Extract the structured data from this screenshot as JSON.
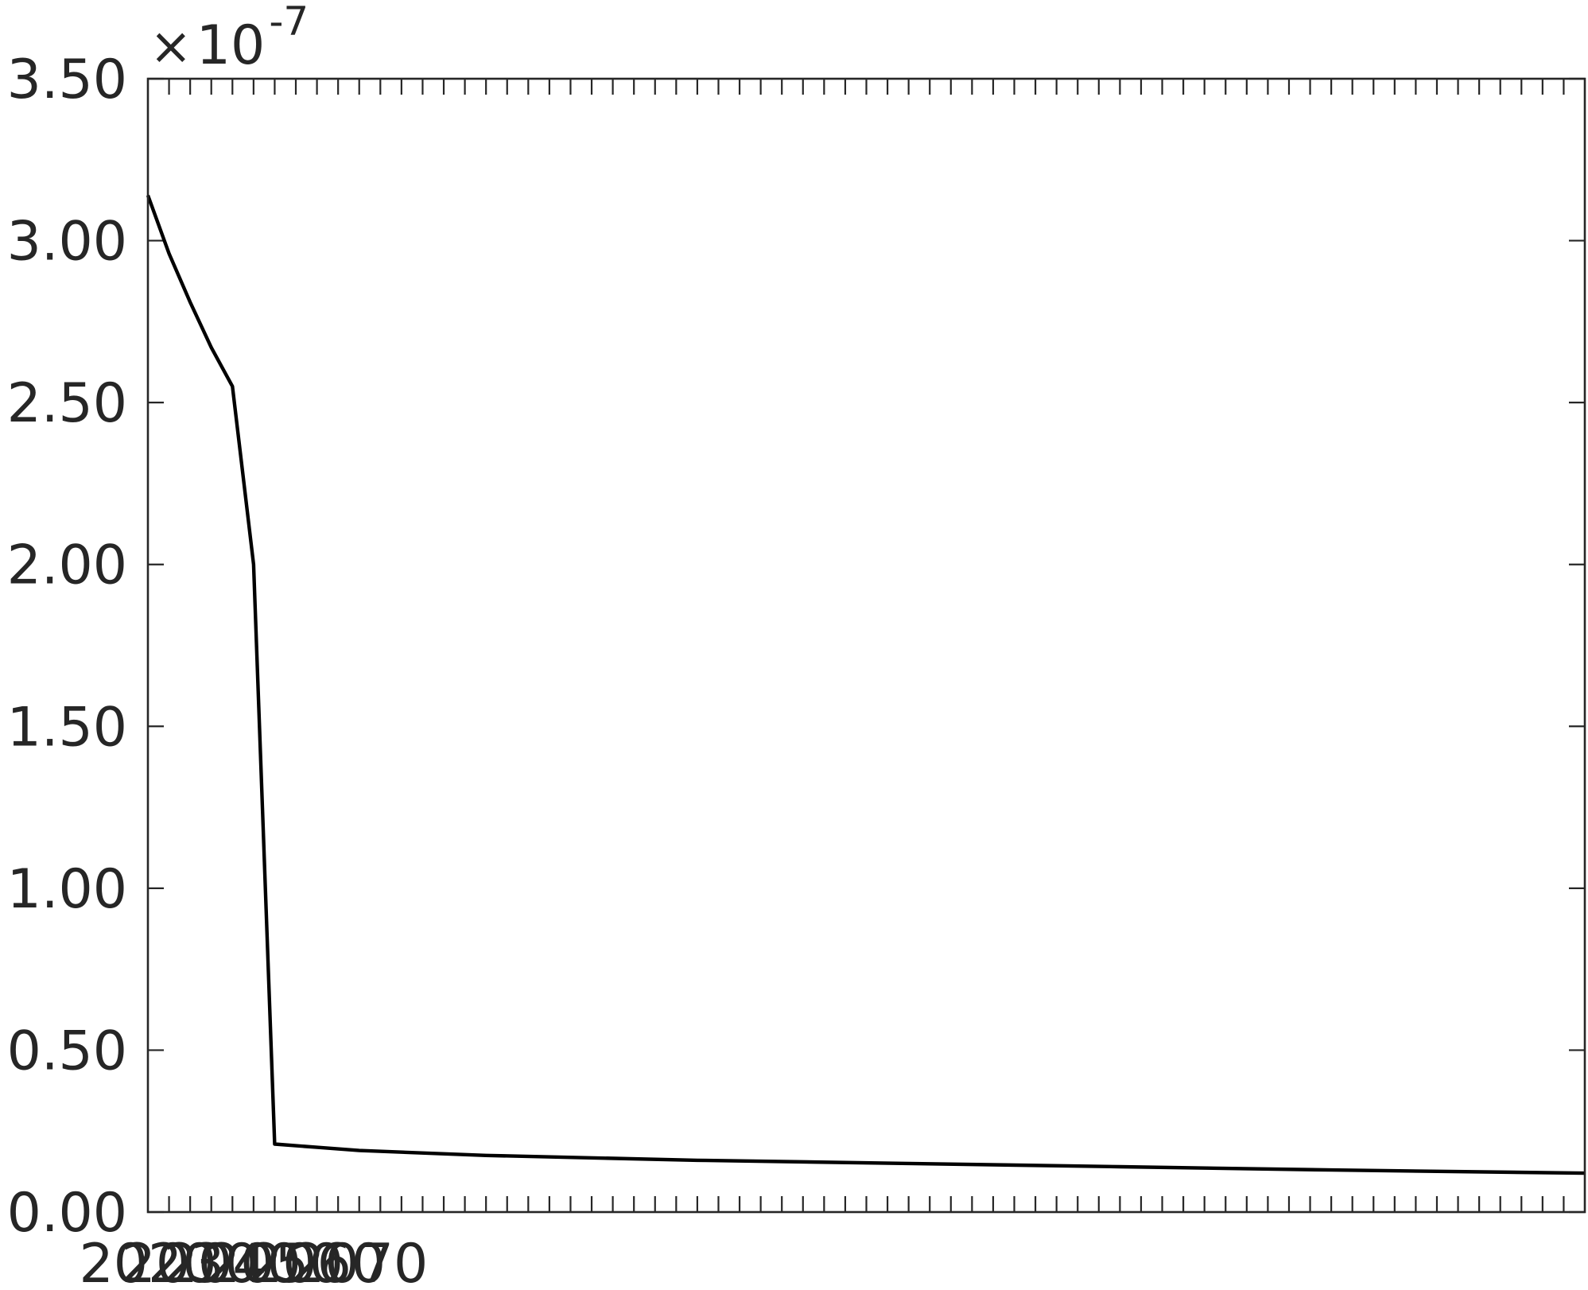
{
  "chart_data": {
    "type": "line",
    "title": "",
    "xlabel": "",
    "ylabel": "",
    "y_scale_multiplier": {
      "times": "×",
      "base": "10",
      "exponent": "-7"
    },
    "xlim": [
      2020,
      2360
    ],
    "ylim": [
      0,
      3.5
    ],
    "x_ticks": [
      2020,
      2030,
      2040,
      2050,
      2060,
      2070
    ],
    "x_tick_labels": [
      "2020",
      "2030",
      "2040",
      "2050",
      "2060",
      "2070"
    ],
    "y_ticks": [
      0,
      0.5,
      1,
      1.5,
      2,
      2.5,
      3,
      3.5
    ],
    "y_tick_labels": [
      "0.00",
      "0.50",
      "1.00",
      "1.50",
      "2.00",
      "2.50",
      "3.00",
      "3.50"
    ],
    "grid": false,
    "series": [
      {
        "color": "#000000",
        "x": [
          2020,
          2025,
          2030,
          2035,
          2040,
          2045,
          2050,
          2060,
          2070,
          2100,
          2150,
          2200,
          2250,
          2300,
          2360
        ],
        "y": [
          3.14,
          2.96,
          2.81,
          2.67,
          2.55,
          2.0,
          0.21,
          0.2,
          0.19,
          0.175,
          0.16,
          0.15,
          0.14,
          0.13,
          0.12
        ]
      }
    ]
  }
}
